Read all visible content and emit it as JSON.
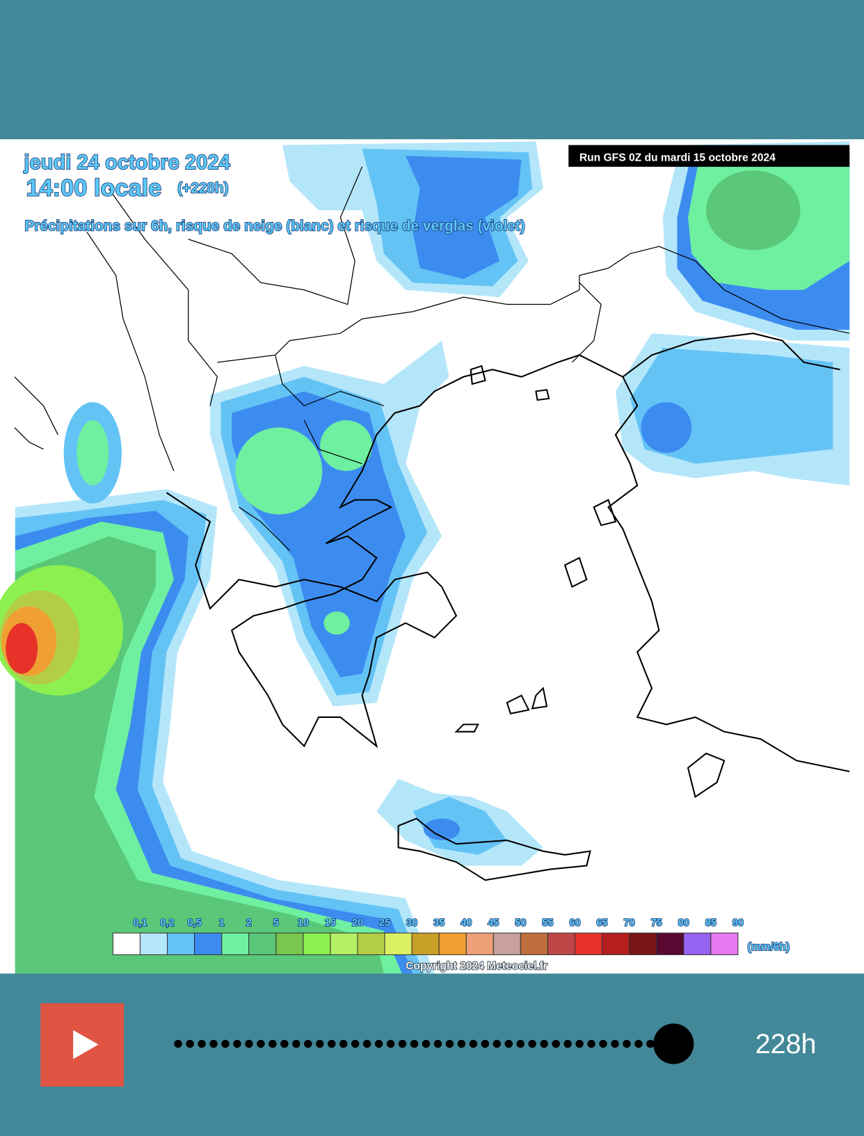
{
  "header": {
    "date": "jeudi 24 octobre 2024",
    "time": "14:00 locale",
    "lead": "(+228h)",
    "description": "Précipitations sur 6h, risque de neige (blanc) et risque de verglas (violet)",
    "run": "Run GFS 0Z du mardi 15 octobre 2024"
  },
  "legend": {
    "labels": [
      "0,1",
      "0,2",
      "0,5",
      "1",
      "2",
      "5",
      "10",
      "15",
      "20",
      "25",
      "30",
      "35",
      "40",
      "45",
      "50",
      "55",
      "60",
      "65",
      "70",
      "75",
      "80",
      "85",
      "90"
    ],
    "colors": [
      "#ffffff",
      "#b4e6fa",
      "#64c3f5",
      "#3c8cf0",
      "#6ef0a0",
      "#5ac878",
      "#78c850",
      "#8cf050",
      "#b4f064",
      "#b4cd46",
      "#dcf064",
      "#c8a028",
      "#f0a032",
      "#f0a078",
      "#c8a0a0",
      "#be6e3c",
      "#be4646",
      "#e63228",
      "#b41e1e",
      "#781414",
      "#5a0a32",
      "#9664f0",
      "#e678f0"
    ],
    "unit": "(mm/6h)"
  },
  "copyright": "Copyright 2024 Meteociel.fr",
  "player": {
    "time_label": "228h"
  }
}
